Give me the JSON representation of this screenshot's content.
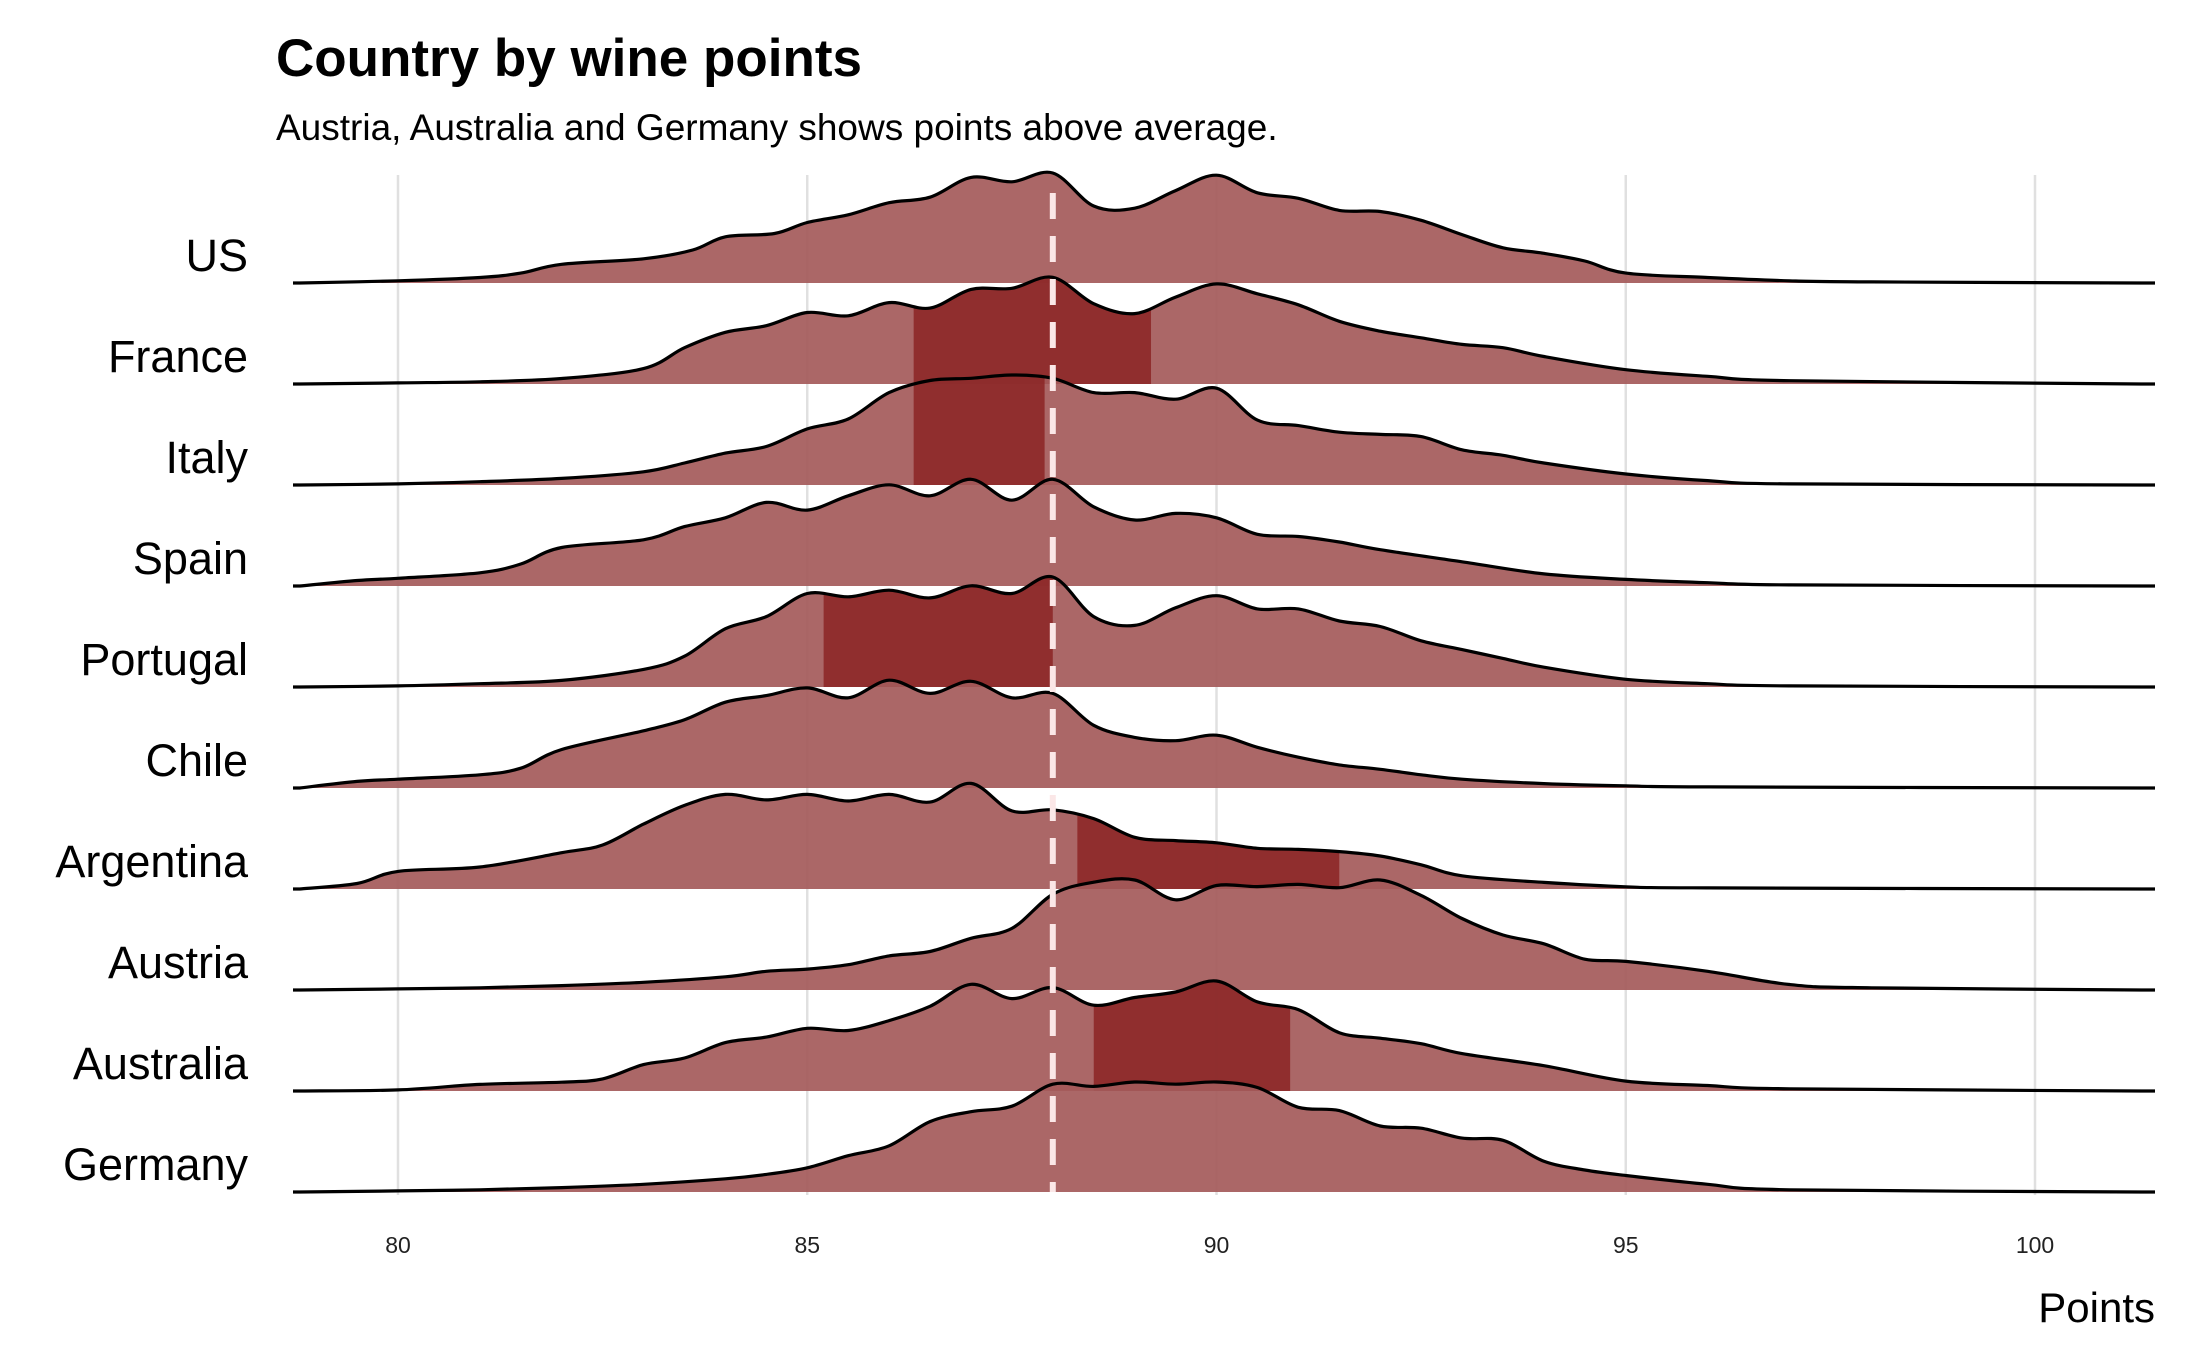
{
  "chart_data": {
    "type": "area",
    "title": "Country by wine points",
    "subtitle": "Austria, Australia and Germany shows points above average.",
    "xlabel": "Points",
    "ylabel": "",
    "xlim": [
      78.7,
      101.5
    ],
    "xticks": [
      80,
      85,
      90,
      95,
      100
    ],
    "grid": true,
    "reference_line": {
      "x": 88,
      "style": "dashed"
    },
    "colors": {
      "fill": "#a45a5a",
      "highlight": "#8b2525",
      "line": "#000000",
      "grid": "#e0e0e0",
      "reference": "#fbe7e7"
    },
    "categories": [
      "US",
      "France",
      "Italy",
      "Spain",
      "Portugal",
      "Chile",
      "Argentina",
      "Austria",
      "Australia",
      "Germany"
    ],
    "series": [
      {
        "name": "US",
        "x": [
          78.8,
          80,
          81,
          81.5,
          82,
          83,
          83.6,
          84,
          84.6,
          85,
          85.5,
          86,
          86.5,
          87,
          87.5,
          88,
          88.5,
          89,
          89.5,
          90,
          90.5,
          91,
          91.5,
          92,
          92.5,
          93,
          93.5,
          94,
          94.5,
          95,
          96,
          97,
          98,
          101.3
        ],
        "density": [
          0,
          0.02,
          0.05,
          0.09,
          0.17,
          0.22,
          0.3,
          0.42,
          0.45,
          0.55,
          0.62,
          0.73,
          0.78,
          0.96,
          0.92,
          1.0,
          0.7,
          0.68,
          0.84,
          0.98,
          0.82,
          0.77,
          0.66,
          0.65,
          0.57,
          0.44,
          0.32,
          0.27,
          0.2,
          0.09,
          0.05,
          0.02,
          0.01,
          0
        ]
      },
      {
        "name": "France",
        "x": [
          78.8,
          80,
          81,
          82,
          83,
          83.5,
          84,
          84.5,
          85,
          85.5,
          86,
          86.5,
          87,
          87.5,
          88,
          88.5,
          89,
          89.5,
          90,
          90.5,
          91,
          91.5,
          92,
          92.5,
          93,
          93.5,
          94,
          95,
          96,
          97,
          101.3
        ],
        "density": [
          0,
          0.01,
          0.02,
          0.05,
          0.14,
          0.33,
          0.47,
          0.53,
          0.65,
          0.62,
          0.74,
          0.69,
          0.86,
          0.87,
          0.97,
          0.73,
          0.64,
          0.79,
          0.91,
          0.82,
          0.72,
          0.57,
          0.48,
          0.42,
          0.36,
          0.33,
          0.25,
          0.13,
          0.07,
          0.03,
          0
        ]
      },
      {
        "name": "Italy",
        "x": [
          78.8,
          80,
          81,
          82,
          83,
          83.5,
          84,
          84.5,
          85,
          85.5,
          86,
          86.5,
          87,
          87.5,
          88,
          88.5,
          89,
          89.5,
          90,
          90.5,
          91,
          91.5,
          92,
          92.5,
          93,
          93.5,
          94,
          95,
          96,
          97,
          101.3
        ],
        "density": [
          0,
          0.01,
          0.03,
          0.06,
          0.12,
          0.2,
          0.29,
          0.35,
          0.51,
          0.6,
          0.84,
          0.95,
          0.97,
          1.0,
          0.97,
          0.84,
          0.84,
          0.78,
          0.88,
          0.59,
          0.54,
          0.48,
          0.46,
          0.44,
          0.32,
          0.27,
          0.2,
          0.1,
          0.04,
          0.01,
          0
        ]
      },
      {
        "name": "Spain",
        "x": [
          78.8,
          79.5,
          80,
          81,
          81.5,
          82,
          83,
          83.5,
          84,
          84.5,
          85,
          85.5,
          86,
          86.5,
          87,
          87.5,
          88,
          88.5,
          89,
          89.5,
          90,
          90.5,
          91,
          91.5,
          92,
          93,
          94,
          95,
          96,
          97,
          101.3
        ],
        "density": [
          0,
          0.05,
          0.07,
          0.12,
          0.2,
          0.35,
          0.42,
          0.54,
          0.62,
          0.76,
          0.69,
          0.82,
          0.92,
          0.82,
          0.97,
          0.78,
          0.97,
          0.72,
          0.6,
          0.66,
          0.62,
          0.47,
          0.45,
          0.4,
          0.33,
          0.22,
          0.11,
          0.06,
          0.03,
          0.01,
          0
        ]
      },
      {
        "name": "Portugal",
        "x": [
          78.8,
          80,
          81,
          82,
          83,
          83.5,
          84,
          84.5,
          85,
          85.5,
          86,
          86.5,
          87,
          87.5,
          88,
          88.5,
          89,
          89.5,
          90,
          90.5,
          91,
          91.5,
          92,
          92.5,
          93,
          93.5,
          94,
          95,
          96,
          97,
          101.3
        ],
        "density": [
          0,
          0.01,
          0.03,
          0.06,
          0.16,
          0.28,
          0.53,
          0.64,
          0.85,
          0.82,
          0.88,
          0.81,
          0.92,
          0.85,
          1.0,
          0.64,
          0.56,
          0.72,
          0.83,
          0.71,
          0.71,
          0.6,
          0.55,
          0.42,
          0.34,
          0.26,
          0.18,
          0.07,
          0.03,
          0.01,
          0
        ]
      },
      {
        "name": "Chile",
        "x": [
          78.8,
          79.5,
          80,
          81,
          81.5,
          82,
          83,
          83.5,
          84,
          84.5,
          85,
          85.5,
          86,
          86.5,
          87,
          87.5,
          88,
          88.5,
          89,
          89.5,
          90,
          90.5,
          91,
          91.5,
          92,
          92.5,
          93,
          94,
          95,
          96,
          101.3
        ],
        "density": [
          0,
          0.06,
          0.08,
          0.12,
          0.18,
          0.35,
          0.52,
          0.62,
          0.78,
          0.84,
          0.91,
          0.82,
          0.98,
          0.86,
          0.97,
          0.82,
          0.86,
          0.57,
          0.46,
          0.43,
          0.48,
          0.37,
          0.28,
          0.21,
          0.17,
          0.12,
          0.08,
          0.04,
          0.02,
          0.01,
          0
        ]
      },
      {
        "name": "Argentina",
        "x": [
          78.8,
          79.5,
          80,
          81,
          82,
          82.5,
          83,
          83.5,
          84,
          84.5,
          85,
          85.5,
          86,
          86.5,
          87,
          87.5,
          88,
          88.5,
          89,
          89.5,
          90,
          90.5,
          91,
          91.5,
          92,
          92.5,
          93,
          94,
          95,
          96,
          101.3
        ],
        "density": [
          0,
          0.05,
          0.16,
          0.2,
          0.33,
          0.4,
          0.59,
          0.76,
          0.86,
          0.81,
          0.86,
          0.8,
          0.86,
          0.79,
          0.96,
          0.71,
          0.72,
          0.64,
          0.47,
          0.44,
          0.42,
          0.37,
          0.36,
          0.34,
          0.3,
          0.22,
          0.12,
          0.06,
          0.02,
          0.01,
          0
        ]
      },
      {
        "name": "Austria",
        "x": [
          78.8,
          80,
          81,
          82,
          83,
          84,
          84.5,
          85,
          85.5,
          86,
          86.5,
          87,
          87.5,
          88,
          88.5,
          89,
          89.5,
          90,
          90.5,
          91,
          91.5,
          92,
          92.5,
          93,
          93.5,
          94,
          94.5,
          95,
          96,
          97,
          98,
          101.3
        ],
        "density": [
          0,
          0.01,
          0.02,
          0.04,
          0.07,
          0.12,
          0.17,
          0.19,
          0.23,
          0.31,
          0.35,
          0.47,
          0.56,
          0.87,
          0.98,
          1.0,
          0.82,
          0.95,
          0.94,
          0.96,
          0.93,
          1.0,
          0.86,
          0.65,
          0.5,
          0.42,
          0.28,
          0.26,
          0.17,
          0.05,
          0.02,
          0
        ]
      },
      {
        "name": "Australia",
        "x": [
          78.8,
          80,
          81,
          82,
          82.5,
          83,
          83.5,
          84,
          84.5,
          85,
          85.5,
          86,
          86.5,
          87,
          87.5,
          88,
          88.5,
          89,
          89.5,
          90,
          90.5,
          91,
          91.5,
          92,
          92.5,
          93,
          94,
          95,
          96,
          97,
          101.3
        ],
        "density": [
          0,
          0.01,
          0.06,
          0.08,
          0.11,
          0.24,
          0.3,
          0.44,
          0.49,
          0.57,
          0.55,
          0.64,
          0.77,
          0.97,
          0.84,
          0.94,
          0.78,
          0.85,
          0.9,
          1.0,
          0.81,
          0.74,
          0.53,
          0.48,
          0.43,
          0.34,
          0.23,
          0.09,
          0.05,
          0.02,
          0
        ]
      },
      {
        "name": "Germany",
        "x": [
          78.8,
          80,
          81,
          82,
          83,
          84,
          84.5,
          85,
          85.5,
          86,
          86.5,
          87,
          87.5,
          88,
          88.5,
          89,
          89.5,
          90,
          90.5,
          91,
          91.5,
          92,
          92.5,
          93,
          93.5,
          94,
          94.5,
          95,
          96,
          97,
          101.3
        ],
        "density": [
          0,
          0.01,
          0.02,
          0.04,
          0.07,
          0.12,
          0.16,
          0.22,
          0.33,
          0.42,
          0.64,
          0.73,
          0.78,
          0.98,
          0.96,
          1.0,
          0.98,
          1.0,
          0.95,
          0.77,
          0.74,
          0.6,
          0.58,
          0.49,
          0.47,
          0.28,
          0.2,
          0.15,
          0.07,
          0.02,
          0
        ]
      }
    ]
  }
}
